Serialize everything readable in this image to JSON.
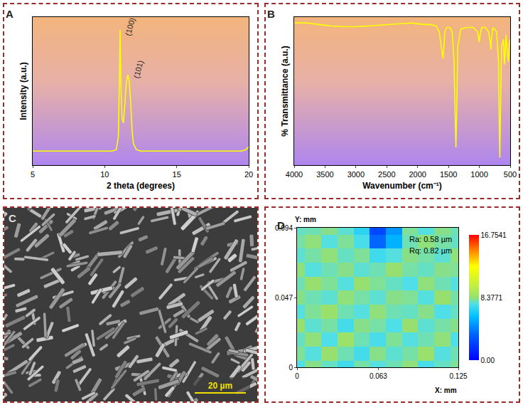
{
  "chart_data": [
    {
      "type": "line",
      "title": "A",
      "xlabel": "2 theta (degrees)",
      "ylabel": "Intensity (a.u.)",
      "x": [
        5,
        6,
        7,
        8,
        9,
        10,
        10.5,
        10.8,
        10.95,
        11.02,
        11.07,
        11.12,
        11.2,
        11.3,
        11.4,
        11.5,
        11.6,
        11.7,
        11.8,
        11.9,
        12.0,
        12.2,
        12.5,
        13,
        14,
        15,
        16,
        17,
        18,
        19,
        19.5,
        19.8,
        20
      ],
      "values": [
        0.1,
        0.1,
        0.1,
        0.1,
        0.1,
        0.1,
        0.1,
        0.11,
        0.2,
        0.6,
        0.96,
        0.6,
        0.33,
        0.3,
        0.42,
        0.58,
        0.64,
        0.6,
        0.45,
        0.25,
        0.15,
        0.11,
        0.1,
        0.1,
        0.1,
        0.1,
        0.1,
        0.1,
        0.1,
        0.1,
        0.1,
        0.11,
        0.13
      ],
      "color": "#ffff00",
      "xlim": [
        5,
        20
      ],
      "xticks": [
        5,
        10,
        15,
        20
      ],
      "ylim": [
        0,
        1.05
      ],
      "yticks": [],
      "tick_labels": "x",
      "annotations": [
        {
          "text": "(100)",
          "x": 11.1,
          "y": 0.9
        },
        {
          "text": "(101)",
          "x": 11.65,
          "y": 0.6
        }
      ]
    },
    {
      "type": "line",
      "title": "B",
      "xlabel": "Wavenumber (cm⁻¹)",
      "ylabel": "% Transmittance (a.u.)",
      "x": [
        4000,
        3800,
        3600,
        3400,
        3200,
        3000,
        2800,
        2600,
        2400,
        2200,
        2100,
        2000,
        1900,
        1800,
        1700,
        1650,
        1610,
        1590,
        1575,
        1560,
        1530,
        1480,
        1440,
        1410,
        1390,
        1380,
        1370,
        1350,
        1300,
        1200,
        1100,
        1030,
        1010,
        1000,
        990,
        960,
        900,
        850,
        820,
        812,
        805,
        780,
        720,
        690,
        675,
        668,
        660,
        640,
        610,
        595,
        585,
        570,
        545,
        530,
        515,
        500
      ],
      "values": [
        0.96,
        0.96,
        0.95,
        0.94,
        0.935,
        0.935,
        0.94,
        0.945,
        0.95,
        0.955,
        0.96,
        0.955,
        0.95,
        0.95,
        0.94,
        0.9,
        0.78,
        0.72,
        0.8,
        0.9,
        0.93,
        0.93,
        0.9,
        0.7,
        0.3,
        0.12,
        0.3,
        0.8,
        0.92,
        0.93,
        0.93,
        0.9,
        0.85,
        0.83,
        0.88,
        0.93,
        0.93,
        0.9,
        0.82,
        0.78,
        0.85,
        0.93,
        0.9,
        0.7,
        0.2,
        0.05,
        0.3,
        0.8,
        0.85,
        0.68,
        0.72,
        0.88,
        0.75,
        0.7,
        0.82,
        0.85
      ],
      "color": "#ffff00",
      "xlim": [
        4000,
        500
      ],
      "xticks": [
        4000,
        3500,
        3000,
        2500,
        2000,
        1500,
        1000,
        500
      ],
      "ylim": [
        0,
        1
      ],
      "yticks": [],
      "tick_labels": "x"
    },
    {
      "type": "heatmap",
      "title": "D",
      "xlabel": "X: mm",
      "ylabel": "Y: mm",
      "x": [
        0,
        0.0125,
        0.025,
        0.0375,
        0.05,
        0.0625,
        0.075,
        0.0875,
        0.1,
        0.1125,
        0.125
      ],
      "y": [
        0,
        0.0094,
        0.0188,
        0.0282,
        0.0376,
        0.047,
        0.0564,
        0.0658,
        0.0752,
        0.0846,
        0.094
      ],
      "z": [
        [
          7.5,
          8.2,
          7.8,
          7.2,
          8.0,
          7.6,
          7.9,
          8.3,
          7.4,
          7.8,
          8.1
        ],
        [
          8.1,
          7.6,
          8.4,
          7.9,
          7.3,
          8.2,
          7.7,
          8.0,
          8.5,
          7.6,
          7.9
        ],
        [
          7.8,
          8.3,
          7.5,
          8.6,
          7.9,
          7.4,
          8.1,
          7.6,
          7.9,
          8.3,
          7.5
        ],
        [
          8.4,
          7.7,
          8.0,
          7.3,
          8.2,
          8.0,
          7.5,
          8.4,
          7.7,
          8.0,
          8.2
        ],
        [
          7.6,
          8.1,
          8.5,
          7.9,
          7.6,
          8.3,
          7.9,
          7.8,
          8.2,
          7.5,
          7.8
        ],
        [
          8.2,
          7.9,
          7.7,
          8.3,
          8.0,
          7.7,
          8.2,
          8.1,
          7.6,
          8.4,
          8.0
        ],
        [
          7.9,
          8.4,
          8.1,
          7.6,
          8.4,
          8.1,
          7.8,
          7.5,
          8.3,
          7.9,
          7.6
        ],
        [
          8.3,
          7.6,
          7.9,
          8.2,
          7.7,
          7.9,
          8.4,
          8.0,
          7.8,
          8.2,
          8.1
        ],
        [
          7.7,
          8.0,
          8.3,
          7.8,
          8.1,
          7.2,
          7.6,
          8.2,
          8.0,
          7.7,
          8.3
        ],
        [
          8.0,
          8.3,
          7.6,
          8.1,
          7.4,
          3.5,
          5.5,
          7.9,
          8.3,
          8.0,
          7.8
        ],
        [
          7.8,
          7.9,
          8.2,
          7.7,
          6.8,
          2.5,
          4.8,
          8.1,
          7.6,
          8.2,
          7.9
        ]
      ],
      "xlim": [
        0,
        0.125
      ],
      "xticks": [
        0,
        0.063,
        0.125
      ],
      "ylim": [
        0,
        0.094
      ],
      "yticks": [
        0,
        0.047,
        0.094
      ],
      "colorbar": {
        "range": [
          0,
          16.7541
        ],
        "ticks": [
          {
            "value": 0,
            "label": "0.00"
          },
          8.3771,
          16.7541
        ]
      },
      "annotations": [
        {
          "text": "Ra: 0.58 µm"
        },
        {
          "text": "Rq: 0.82 µm"
        }
      ]
    }
  ],
  "image": {
    "title": "C",
    "scale_bar": "20 µm"
  }
}
